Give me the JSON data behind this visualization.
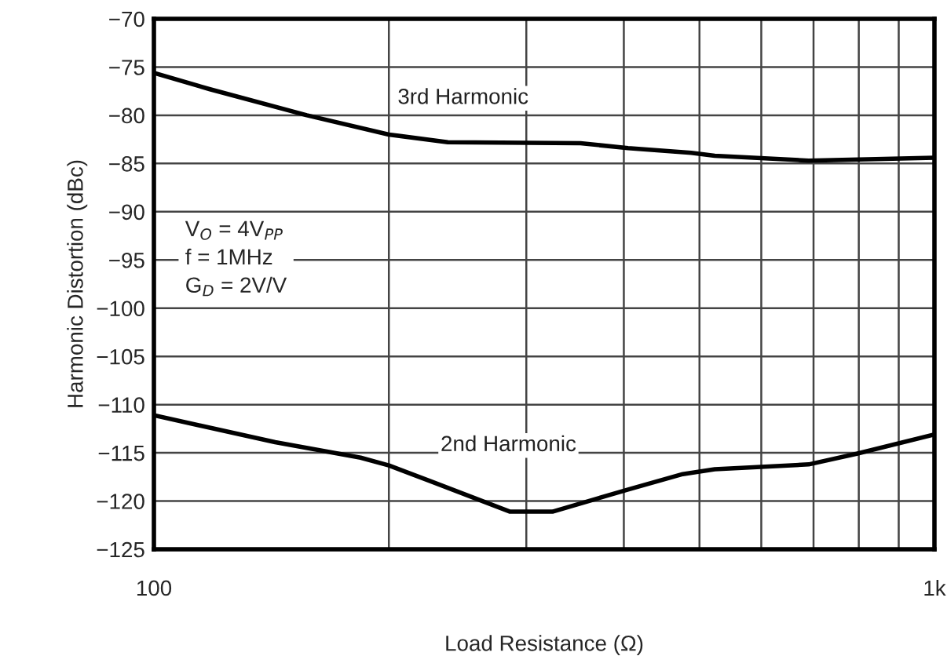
{
  "chart_data": {
    "type": "line",
    "xlabel": "Load Resistance (Ω)",
    "ylabel": "Harmonic Distortion (dBc)",
    "series": [
      {
        "name": "3rd Harmonic",
        "color": "#000000",
        "x": [
          100,
          118,
          157,
          200,
          238,
          352,
          405,
          488,
          523,
          690,
          1000
        ],
        "values": [
          -75.6,
          -77.3,
          -80.0,
          -82.0,
          -82.8,
          -82.9,
          -83.4,
          -83.9,
          -84.2,
          -84.7,
          -84.4
        ]
      },
      {
        "name": "2nd Harmonic",
        "color": "#000000",
        "x": [
          100,
          143,
          184,
          200,
          227,
          286,
          324,
          405,
          476,
          523,
          690,
          795,
          1000
        ],
        "values": [
          -111.1,
          -113.9,
          -115.5,
          -116.3,
          -118.0,
          -121.1,
          -121.1,
          -118.8,
          -117.2,
          -116.7,
          -116.2,
          -115.1,
          -113.1
        ]
      }
    ],
    "annotations": [
      "V$_{O}$ = 4V$_{PP}$",
      "f = 1MHz",
      "G$_{D}$ = 2V/V"
    ],
    "log": "x",
    "grid": true,
    "legend": false,
    "line_style": "solid",
    "marker": "none",
    "xlim": [
      100,
      1000
    ],
    "xticks": [
      {
        "value": 100,
        "label": "100"
      },
      {
        "value": 200,
        "label": null
      },
      {
        "value": 300,
        "label": null
      },
      {
        "value": 400,
        "label": null
      },
      {
        "value": 500,
        "label": null
      },
      {
        "value": 600,
        "label": null
      },
      {
        "value": 700,
        "label": null
      },
      {
        "value": 800,
        "label": null
      },
      {
        "value": 900,
        "label": null
      },
      {
        "value": 1000,
        "label": "1k"
      }
    ],
    "ylim": [
      -125,
      -70
    ],
    "yticks": [
      {
        "value": -125,
        "label": "−125"
      },
      {
        "value": -120,
        "label": "−120"
      },
      {
        "value": -115,
        "label": "−115"
      },
      {
        "value": -110,
        "label": "−110"
      },
      {
        "value": -105,
        "label": "−105"
      },
      {
        "value": -100,
        "label": "−100"
      },
      {
        "value": -95,
        "label": "−95"
      },
      {
        "value": -90,
        "label": "−90"
      },
      {
        "value": -85,
        "label": "−85"
      },
      {
        "value": -80,
        "label": "−80"
      },
      {
        "value": -75,
        "label": "−75"
      },
      {
        "value": -70,
        "label": "−70"
      }
    ]
  }
}
